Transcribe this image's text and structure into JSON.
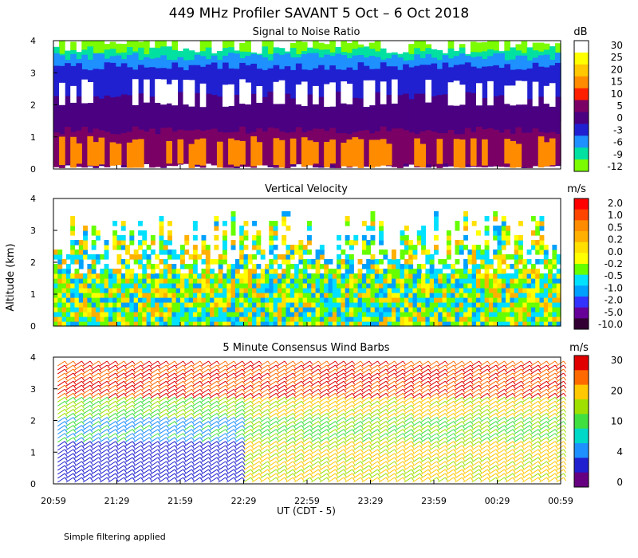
{
  "title": "449 MHz Profiler SAVANT  5 Oct –  6 Oct 2018",
  "xlabel": "UT  (CDT - 5)",
  "ylabel": "Altitude (km)",
  "footnote": "Simple filtering applied",
  "x_ticks": [
    "20:59",
    "21:29",
    "21:59",
    "22:29",
    "22:59",
    "23:29",
    "23:59",
    "00:29",
    "00:59"
  ],
  "y_ticks": [
    "0",
    "1",
    "2",
    "3",
    "4"
  ],
  "chart_data": [
    {
      "type": "heatmap",
      "title": "Signal to Noise Ratio",
      "unit": "dB",
      "ylim": [
        0,
        4
      ],
      "colorbar": {
        "labels": [
          "30",
          "25",
          "20",
          "15",
          "10",
          "5",
          "0",
          "-3",
          "-6",
          "-9",
          "-12"
        ],
        "colors": [
          "#ffffff",
          "#ffff00",
          "#ffc800",
          "#ff8c00",
          "#ff2000",
          "#7a0066",
          "#4b0082",
          "#2020d0",
          "#1e90ff",
          "#00e0a0",
          "#7cfc00"
        ]
      },
      "layers_km": [
        {
          "level": "-12",
          "bottom": 2.6,
          "top": 4.0,
          "coverage": "patchy"
        },
        {
          "level": "-9",
          "bottom": 2.4,
          "top": 3.7
        },
        {
          "level": "-6",
          "bottom": 1.9,
          "top": 3.5
        },
        {
          "level": "-3",
          "bottom": 1.5,
          "top": 3.2
        },
        {
          "level": "0",
          "bottom": 0.1,
          "top": 2.3
        },
        {
          "level": "5",
          "bottom": 0.1,
          "top": 1.2
        },
        {
          "level": "15",
          "bottom": 0.1,
          "top": 0.9,
          "coverage": "patchy"
        },
        {
          "level": "30",
          "bottom": 2.0,
          "top": 2.7,
          "coverage": "patchy"
        }
      ]
    },
    {
      "type": "heatmap",
      "title": "Vertical Velocity",
      "unit": "m/s",
      "ylim": [
        0,
        4
      ],
      "colorbar": {
        "labels": [
          "2.0",
          "1.0",
          "0.5",
          "0.2",
          "0.0",
          "-0.2",
          "-0.5",
          "-1.0",
          "-2.0",
          "-5.0",
          "-10.0"
        ],
        "colors": [
          "#ff0000",
          "#ff4500",
          "#ff8c00",
          "#ffb000",
          "#ffe000",
          "#ffff00",
          "#66ff00",
          "#00e0ff",
          "#00a0ff",
          "#3333ff",
          "#660099",
          "#330033"
        ]
      },
      "data_top_km": 3.6
    },
    {
      "type": "scatter",
      "title": "5 Minute Consensus Wind Barbs",
      "unit": "m/s",
      "ylim": [
        0,
        4
      ],
      "colorbar": {
        "labels": [
          "30",
          "20",
          "10",
          "4",
          "0"
        ],
        "colors": [
          "#e00000",
          "#ff6a00",
          "#ffc800",
          "#a0e000",
          "#40e040",
          "#00d8c8",
          "#1e90ff",
          "#2020d0",
          "#660080"
        ]
      },
      "speed_bands_ms": [
        {
          "bottom_km": 0.0,
          "top_km": 1.2,
          "before_2229": "0-4",
          "after_2229": "14-20"
        },
        {
          "bottom_km": 1.2,
          "top_km": 2.0,
          "before_2229": "4-10",
          "after_2229": "10-14"
        },
        {
          "bottom_km": 2.0,
          "top_km": 2.6,
          "before_2229": "10-14",
          "after_2229": "14-20"
        },
        {
          "bottom_km": 2.6,
          "top_km": 3.8,
          "before_2229": "20-30",
          "after_2229": "20-30"
        }
      ]
    }
  ]
}
